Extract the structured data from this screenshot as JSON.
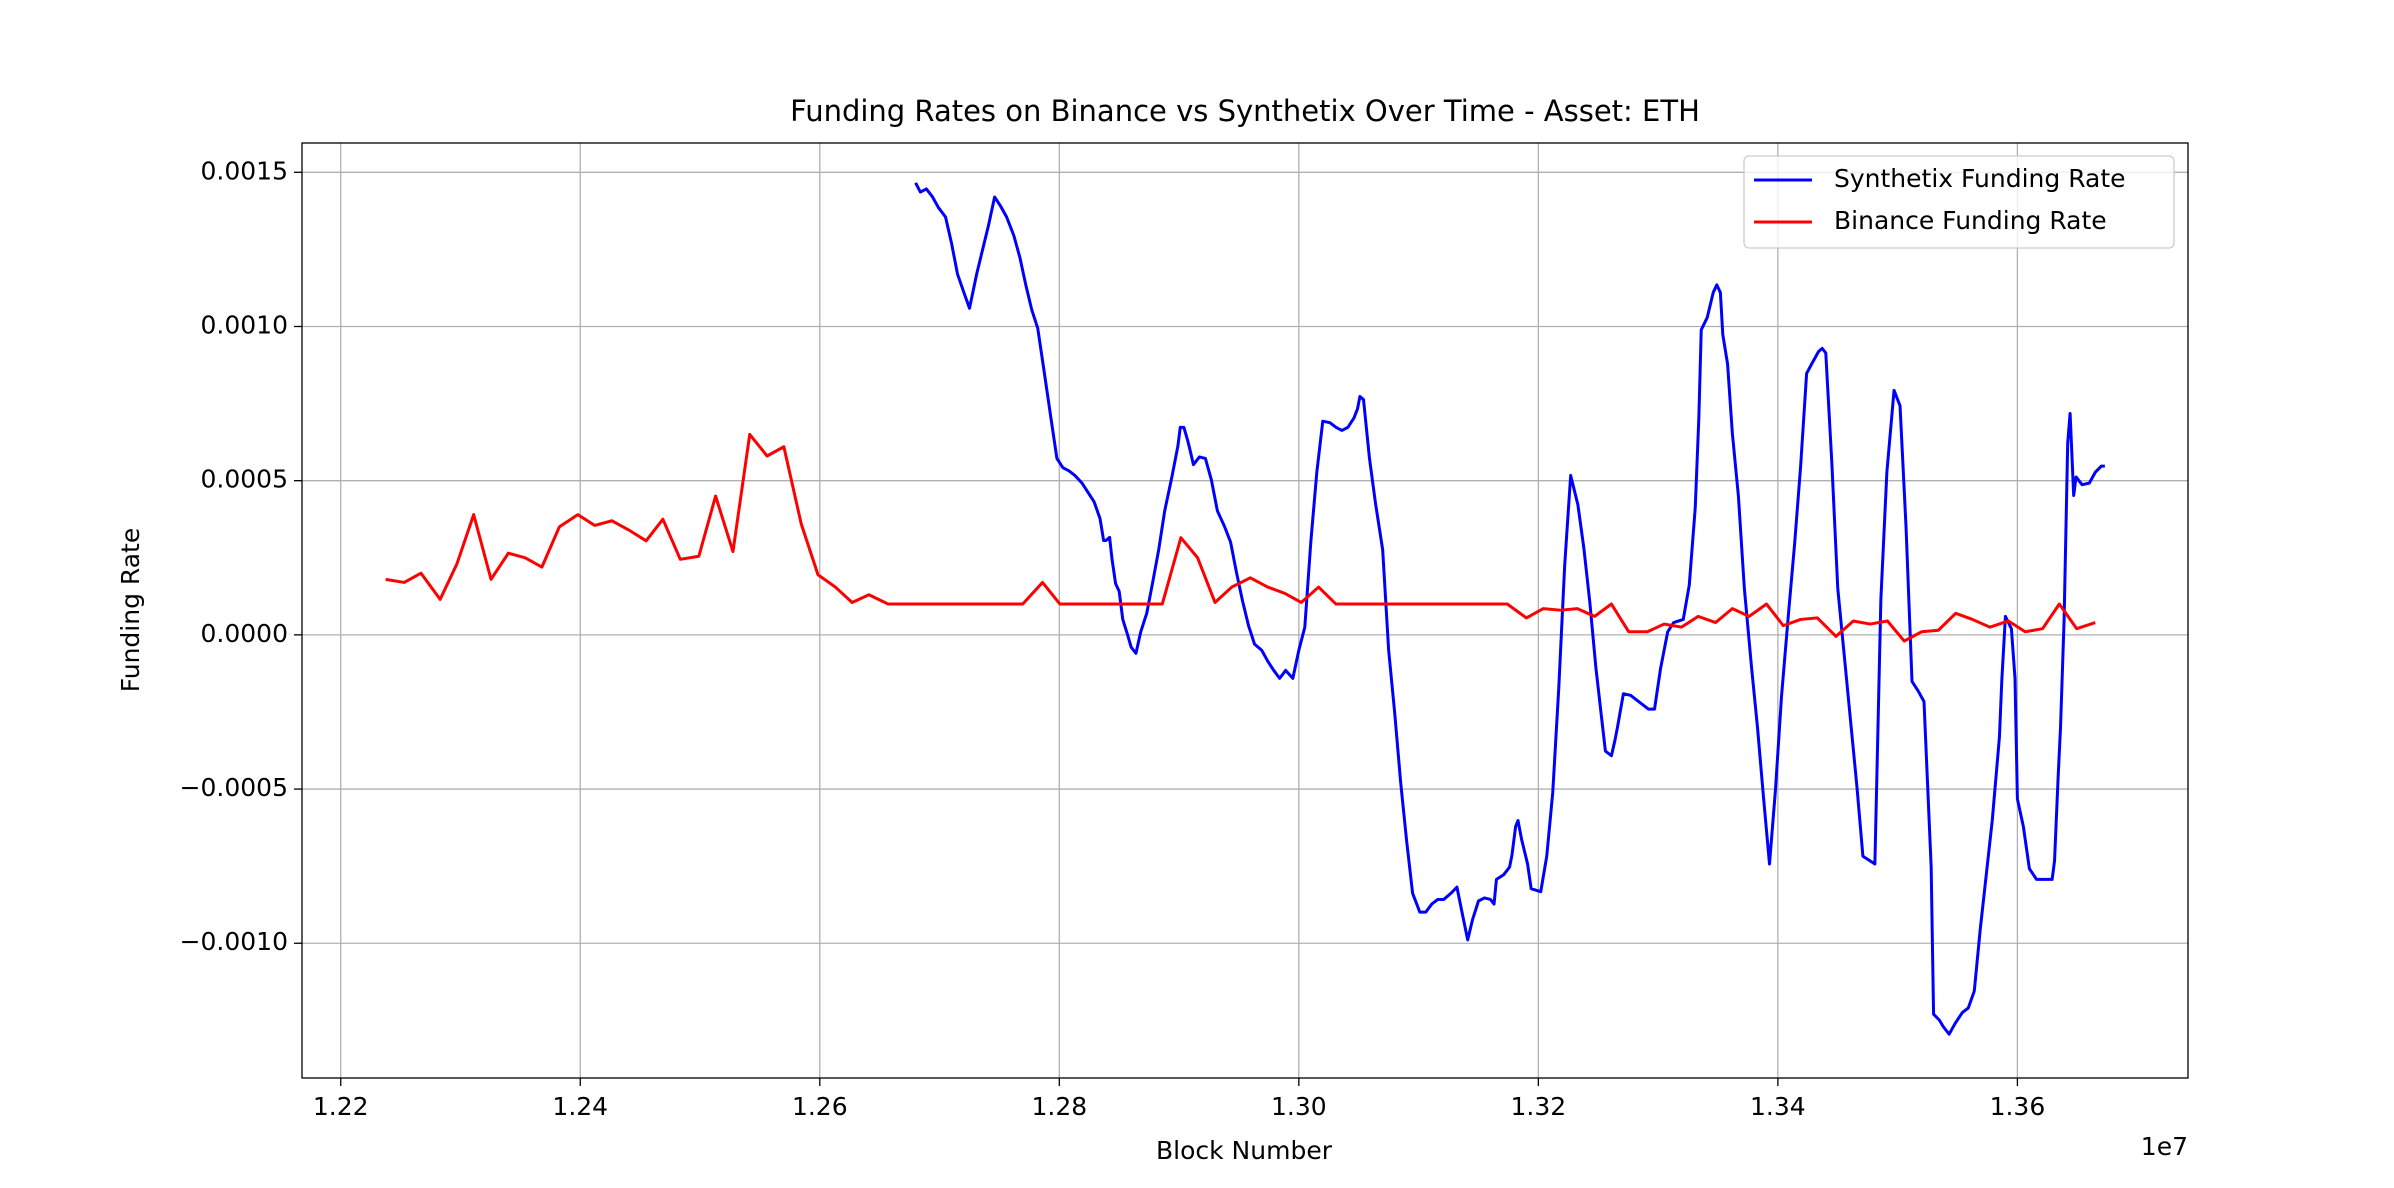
{
  "chart_data": {
    "type": "line",
    "title": "Funding Rates on Binance vs Synthetix Over Time - Asset: ETH",
    "x_label": "Block Number",
    "y_label": "Funding Rate",
    "x_offset_label": "1e7",
    "grid": true,
    "legend": "upper right",
    "xlim": [
      12167650,
      13742450
    ],
    "ylim": [
      -0.001437,
      0.001595
    ],
    "xticks": [
      {
        "value": 12200000,
        "label": "1.22"
      },
      {
        "value": 12400000,
        "label": "1.24"
      },
      {
        "value": 12600000,
        "label": "1.26"
      },
      {
        "value": 12800000,
        "label": "1.28"
      },
      {
        "value": 13000000,
        "label": "1.30"
      },
      {
        "value": 13200000,
        "label": "1.32"
      },
      {
        "value": 13400000,
        "label": "1.34"
      },
      {
        "value": 13600000,
        "label": "1.36"
      }
    ],
    "yticks": [
      {
        "value": -0.001,
        "label": "−0.0010"
      },
      {
        "value": -0.0005,
        "label": "−0.0005"
      },
      {
        "value": 0,
        "label": "0.0000"
      },
      {
        "value": 0.0005,
        "label": "0.0005"
      },
      {
        "value": 0.001,
        "label": "0.0010"
      },
      {
        "value": 0.0015,
        "label": "0.0015"
      }
    ],
    "series": [
      {
        "name": "Synthetix Funding Rate",
        "color": "#0000ff",
        "x": [
          12680000,
          12684000,
          12689000,
          12694000,
          12699000,
          12705000,
          12710000,
          12715000,
          12720000,
          12725000,
          12731000,
          12736000,
          12741000,
          12746000,
          12751000,
          12756000,
          12762000,
          12767000,
          12772000,
          12777000,
          12782000,
          12787000,
          12793000,
          12798000,
          12803000,
          12808000,
          12813000,
          12819000,
          12824000,
          12829000,
          12834000,
          12837000,
          12839000,
          12842000,
          12844000,
          12847000,
          12850000,
          12853000,
          12857000,
          12860000,
          12864000,
          12868000,
          12873000,
          12878000,
          12883000,
          12888000,
          12894000,
          12899000,
          12901000,
          12904000,
          12907000,
          12909000,
          12912000,
          12914000,
          12917000,
          12922000,
          12927000,
          12932000,
          12938000,
          12943000,
          12948000,
          12953000,
          12958000,
          12963000,
          12969000,
          12974000,
          12979000,
          12984000,
          12989000,
          12995000,
          13000000,
          13005000,
          13010000,
          13015000,
          13020000,
          13026000,
          13031000,
          13036000,
          13041000,
          13046000,
          13049000,
          13051000,
          13054000,
          13059000,
          13064000,
          13070000,
          13075000,
          13080000,
          13085000,
          13090000,
          13095000,
          13101000,
          13106000,
          13111000,
          13116000,
          13121000,
          13127000,
          13132000,
          13137000,
          13141000,
          13145000,
          13150000,
          13155000,
          13160000,
          13163000,
          13165000,
          13171000,
          13176000,
          13178000,
          13181000,
          13183000,
          13186000,
          13191000,
          13194000,
          13202000,
          13207000,
          13212000,
          13217000,
          13222000,
          13225000,
          13227000,
          13233000,
          13238000,
          13243000,
          13248000,
          13253000,
          13256000,
          13261000,
          13264000,
          13266000,
          13271000,
          13277000,
          13282000,
          13287000,
          13292000,
          13297000,
          13302000,
          13308000,
          13313000,
          13321000,
          13326000,
          13331000,
          13334000,
          13336000,
          13341000,
          13346000,
          13349000,
          13352000,
          13354000,
          13358000,
          13362000,
          13367000,
          13372000,
          13378000,
          13383000,
          13388000,
          13393000,
          13398000,
          13403000,
          13409000,
          13414000,
          13419000,
          13424000,
          13429000,
          13434000,
          13437000,
          13440000,
          13445000,
          13450000,
          13455000,
          13460000,
          13466000,
          13471000,
          13481000,
          13486000,
          13491000,
          13497000,
          13502000,
          13507000,
          13512000,
          13517000,
          13522000,
          13528000,
          13530000,
          13535000,
          13538000,
          13543000,
          13548000,
          13554000,
          13559000,
          13564000,
          13569000,
          13574000,
          13579000,
          13585000,
          13587000,
          13590000,
          13595000,
          13598000,
          13600000,
          13605000,
          13610000,
          13616000,
          13629000,
          13631000,
          13634000,
          13636000,
          13639000,
          13642000,
          13644000,
          13647000,
          13649000,
          13654000,
          13660000,
          13665000,
          13670000,
          13673000
        ],
        "values": [
          0.001466,
          0.001436,
          0.001446,
          0.001421,
          0.001386,
          0.001355,
          0.00127,
          0.00117,
          0.001114,
          0.001059,
          0.00117,
          0.00125,
          0.00133,
          0.00142,
          0.00139,
          0.001355,
          0.001295,
          0.001225,
          0.001135,
          0.001054,
          0.000994,
          0.000863,
          0.000703,
          0.000572,
          0.000542,
          0.000532,
          0.000517,
          0.000492,
          0.000462,
          0.000432,
          0.000377,
          0.000306,
          0.000306,
          0.000316,
          0.000246,
          0.000166,
          0.000141,
          5e-05,
          0,
          -4e-05,
          -6e-05,
          1e-05,
          7e-05,
          0.000171,
          0.000276,
          0.000402,
          0.000512,
          0.000612,
          0.000673,
          0.000673,
          0.000633,
          0.000602,
          0.000552,
          0.000562,
          0.000577,
          0.000572,
          0.000502,
          0.000402,
          0.000351,
          0.000301,
          0.000201,
          0.00011,
          3e-05,
          -3e-05,
          -5e-05,
          -8.5e-05,
          -0.000115,
          -0.000141,
          -0.000115,
          -0.000141,
          -5e-05,
          2.5e-05,
          0.000301,
          0.000527,
          0.000693,
          0.000688,
          0.000673,
          0.000663,
          0.000673,
          0.000703,
          0.000733,
          0.000773,
          0.000763,
          0.000572,
          0.000427,
          0.000276,
          -5e-05,
          -0.000251,
          -0.000477,
          -0.000668,
          -0.000838,
          -0.000899,
          -0.000899,
          -0.000873,
          -0.000858,
          -0.000858,
          -0.000838,
          -0.000818,
          -0.000914,
          -0.000989,
          -0.000924,
          -0.000863,
          -0.000853,
          -0.000858,
          -0.000873,
          -0.000793,
          -0.000778,
          -0.000753,
          -0.000713,
          -0.000622,
          -0.000602,
          -0.000663,
          -0.000743,
          -0.000823,
          -0.000833,
          -0.000718,
          -0.000512,
          -0.000176,
          0.000226,
          0.000402,
          0.000517,
          0.000422,
          0.000281,
          0.000105,
          -0.000105,
          -0.000276,
          -0.000377,
          -0.000392,
          -0.000341,
          -0.000301,
          -0.000191,
          -0.000196,
          -0.000211,
          -0.000226,
          -0.000241,
          -0.000241,
          -0.00011,
          1e-05,
          4e-05,
          5e-05,
          0.000161,
          0.000412,
          0.000703,
          0.000989,
          0.001029,
          0.00111,
          0.001135,
          0.00111,
          0.000974,
          0.000878,
          0.000653,
          0.000452,
          0.000151,
          -0.000105,
          -0.000301,
          -0.000527,
          -0.000743,
          -0.000502,
          -0.000201,
          7.5e-05,
          0.000296,
          0.000547,
          0.000848,
          0.000884,
          0.000919,
          0.000929,
          0.000914,
          0.000562,
          0.000151,
          -5e-05,
          -0.000251,
          -0.000492,
          -0.000718,
          -0.000743,
          0.000115,
          0.000527,
          0.000793,
          0.000743,
          0.000351,
          -0.000151,
          -0.000181,
          -0.000216,
          -0.000753,
          -0.00123,
          -0.00125,
          -0.00127,
          -0.001295,
          -0.00126,
          -0.001225,
          -0.00121,
          -0.001155,
          -0.000954,
          -0.000778,
          -0.000602,
          -0.000331,
          -0.000146,
          6e-05,
          2e-05,
          -0.000141,
          -0.000532,
          -0.000622,
          -0.000758,
          -0.000793,
          -0.000793,
          -0.000733,
          -0.000462,
          -0.000301,
          5e-05,
          0.000622,
          0.000718,
          0.000452,
          0.000512,
          0.000487,
          0.000492,
          0.000527,
          0.000547,
          0.000547
        ]
      },
      {
        "name": "Binance Funding Rate",
        "color": "#ff0000",
        "x": [
          12237500,
          12253000,
          12267000,
          12283000,
          12297000,
          12311000,
          12325500,
          12340000,
          12354000,
          12368000,
          12382500,
          12398000,
          12412000,
          12426500,
          12440500,
          12455000,
          12469000,
          12483500,
          12499000,
          12513000,
          12527500,
          12541500,
          12556000,
          12570000,
          12584500,
          12598500,
          12613000,
          12627000,
          12641000,
          12657000,
          12769500,
          12786000,
          12800500,
          12886000,
          12901500,
          12915500,
          12930000,
          12944000,
          12959500,
          12974000,
          12988000,
          13002000,
          13016500,
          13031000,
          13174000,
          13190000,
          13204000,
          13218500,
          13232500,
          13247000,
          13261000,
          13275500,
          13291000,
          13305000,
          13319500,
          13333500,
          13348000,
          13362000,
          13376000,
          13390500,
          13404500,
          13419000,
          13433000,
          13448500,
          13463000,
          13477000,
          13491500,
          13505500,
          13520000,
          13534000,
          13548500,
          13562500,
          13577000,
          13592500,
          13606500,
          13621000,
          13635000,
          13649500,
          13665000
        ],
        "values": [
          0.00018,
          0.00017,
          0.0002,
          0.000115,
          0.00023,
          0.00039,
          0.00018,
          0.000265,
          0.00025,
          0.00022,
          0.00035,
          0.00039,
          0.000355,
          0.00037,
          0.00034,
          0.000305,
          0.000375,
          0.000245,
          0.000255,
          0.00045,
          0.00027,
          0.00065,
          0.00058,
          0.00061,
          0.00036,
          0.000195,
          0.000155,
          0.000105,
          0.00013,
          0.0001,
          0.0001,
          0.00017,
          0.0001,
          0.0001,
          0.000315,
          0.00025,
          0.000105,
          0.000155,
          0.000185,
          0.000155,
          0.000135,
          0.000105,
          0.000155,
          0.0001,
          0.0001,
          5.5e-05,
          8.5e-05,
          8e-05,
          8.5e-05,
          6e-05,
          0.0001,
          1e-05,
          1e-05,
          3.5e-05,
          2.5e-05,
          6e-05,
          4e-05,
          8.5e-05,
          6e-05,
          0.0001,
          3e-05,
          5e-05,
          5.5e-05,
          -5e-06,
          4.5e-05,
          3.5e-05,
          4.5e-05,
          -2e-05,
          1e-05,
          1.5e-05,
          7e-05,
          5e-05,
          2.5e-05,
          4.5e-05,
          1e-05,
          2e-05,
          0.0001,
          2e-05,
          4e-05
        ]
      }
    ]
  }
}
